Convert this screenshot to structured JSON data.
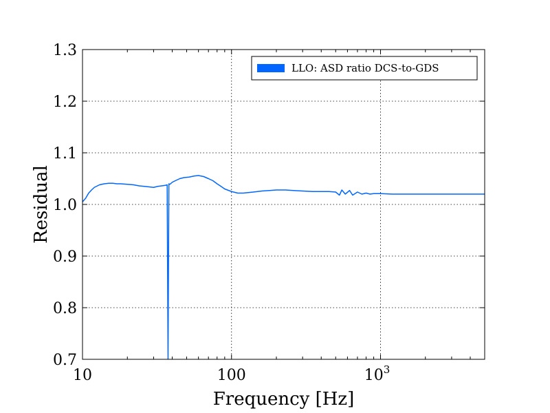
{
  "chart_data": {
    "type": "line",
    "xlabel": "Frequency [Hz]",
    "ylabel": "Residual",
    "xscale": "log",
    "xlim": [
      10,
      5000
    ],
    "ylim": [
      0.7,
      1.3
    ],
    "grid": true,
    "legend_position": "top-right",
    "colors": {
      "series": "#0066ff"
    },
    "yticks": [
      "0.7",
      "0.8",
      "0.9",
      "1.0",
      "1.1",
      "1.2",
      "1.3"
    ],
    "xticks": [
      {
        "value": 10,
        "base": "10",
        "exp": ""
      },
      {
        "value": 100,
        "base": "100",
        "exp": ""
      },
      {
        "value": 1000,
        "base": "10",
        "exp": "3"
      }
    ],
    "series": [
      {
        "name": "LLO: ASD ratio DCS-to-GDS",
        "x": [
          10,
          10.5,
          11,
          11.5,
          12,
          13,
          14,
          15,
          16,
          17,
          18,
          20,
          22,
          24,
          26,
          28,
          30,
          32,
          34,
          36,
          37,
          37.5,
          38,
          38.5,
          39,
          40,
          42,
          45,
          48,
          52,
          56,
          60,
          65,
          70,
          75,
          80,
          85,
          90,
          100,
          110,
          120,
          140,
          160,
          180,
          200,
          230,
          260,
          300,
          350,
          400,
          450,
          500,
          530,
          550,
          580,
          620,
          650,
          700,
          750,
          800,
          850,
          900,
          1000,
          1200,
          1500,
          2000,
          2500,
          3000,
          4000,
          5000
        ],
        "y": [
          1.005,
          1.012,
          1.022,
          1.028,
          1.033,
          1.038,
          1.04,
          1.041,
          1.041,
          1.04,
          1.04,
          1.039,
          1.038,
          1.036,
          1.035,
          1.034,
          1.033,
          1.035,
          1.036,
          1.037,
          1.038,
          0.7,
          1.04,
          1.039,
          1.04,
          1.043,
          1.046,
          1.05,
          1.052,
          1.053,
          1.055,
          1.056,
          1.054,
          1.05,
          1.046,
          1.04,
          1.035,
          1.03,
          1.025,
          1.022,
          1.022,
          1.024,
          1.026,
          1.027,
          1.028,
          1.028,
          1.027,
          1.026,
          1.025,
          1.025,
          1.025,
          1.024,
          1.018,
          1.028,
          1.02,
          1.027,
          1.018,
          1.024,
          1.02,
          1.022,
          1.02,
          1.021,
          1.021,
          1.02,
          1.02,
          1.02,
          1.02,
          1.02,
          1.02,
          1.02
        ]
      }
    ]
  }
}
